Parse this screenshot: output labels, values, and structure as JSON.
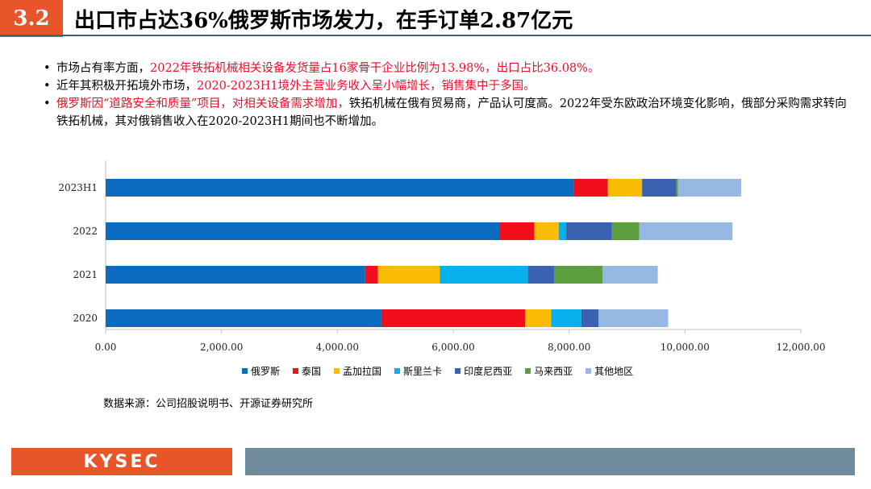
{
  "header": {
    "section_number": "3.2",
    "title": "出口市占达36%俄罗斯市场发力，在手订单2.87亿元"
  },
  "bullets": [
    {
      "bullet": "•",
      "parts": [
        {
          "text": "市场占有率方面，",
          "red": false
        },
        {
          "text": "2022年铁拓机械相关设备发货量占16家骨干企业比例为13.98%，出口占比36.08%。",
          "red": true
        }
      ]
    },
    {
      "bullet": "•",
      "parts": [
        {
          "text": "近年其积极开拓境外市场，",
          "red": false
        },
        {
          "text": "2020-2023H1境外主营业务收入呈小幅增长，销售集中于多国。",
          "red": true
        }
      ]
    },
    {
      "bullet": "•",
      "parts": [
        {
          "text": "俄罗斯因“道路安全和质量”项目，对相关设备需求增加，",
          "red": true
        },
        {
          "text": "铁拓机械在俄有贸易商，产品认可度高。2022年受东欧政治环境变化影响，俄部分采购需求转向铁拓机械，其对俄销售收入在2020-2023H1期间也不断增加。",
          "red": false
        }
      ]
    }
  ],
  "chart_data": {
    "type": "bar",
    "orientation": "horizontal",
    "stacked": true,
    "categories": [
      "2023H1",
      "2022",
      "2021",
      "2020"
    ],
    "series": [
      {
        "name": "俄罗斯",
        "color": "#0b6cbf",
        "values": [
          8080,
          6800,
          4480,
          4760
        ]
      },
      {
        "name": "泰国",
        "color": "#f20f1b",
        "values": [
          590,
          600,
          220,
          2480
        ]
      },
      {
        "name": "孟加拉国",
        "color": "#fbbc05",
        "values": [
          590,
          420,
          1070,
          450
        ]
      },
      {
        "name": "斯里兰卡",
        "color": "#06b0ec",
        "values": [
          0,
          130,
          1520,
          520
        ]
      },
      {
        "name": "印度尼西亚",
        "color": "#3a62b0",
        "values": [
          590,
          790,
          450,
          300
        ]
      },
      {
        "name": "马来西亚",
        "color": "#5c9e3e",
        "values": [
          30,
          470,
          840,
          0
        ]
      },
      {
        "name": "其他地区",
        "color": "#97b8e2",
        "values": [
          1090,
          1610,
          950,
          1200
        ]
      }
    ],
    "x_ticks": [
      "0.00",
      "2,000.00",
      "4,000.00",
      "6,000.00",
      "8,000.00",
      "10,000.00",
      "12,000.00"
    ],
    "xlim": [
      0,
      12000
    ],
    "grid": false,
    "legend_position": "bottom"
  },
  "source": "数据来源：公司招股说明书、开源证券研究所",
  "footer": {
    "logo_text": "KYSEC"
  }
}
